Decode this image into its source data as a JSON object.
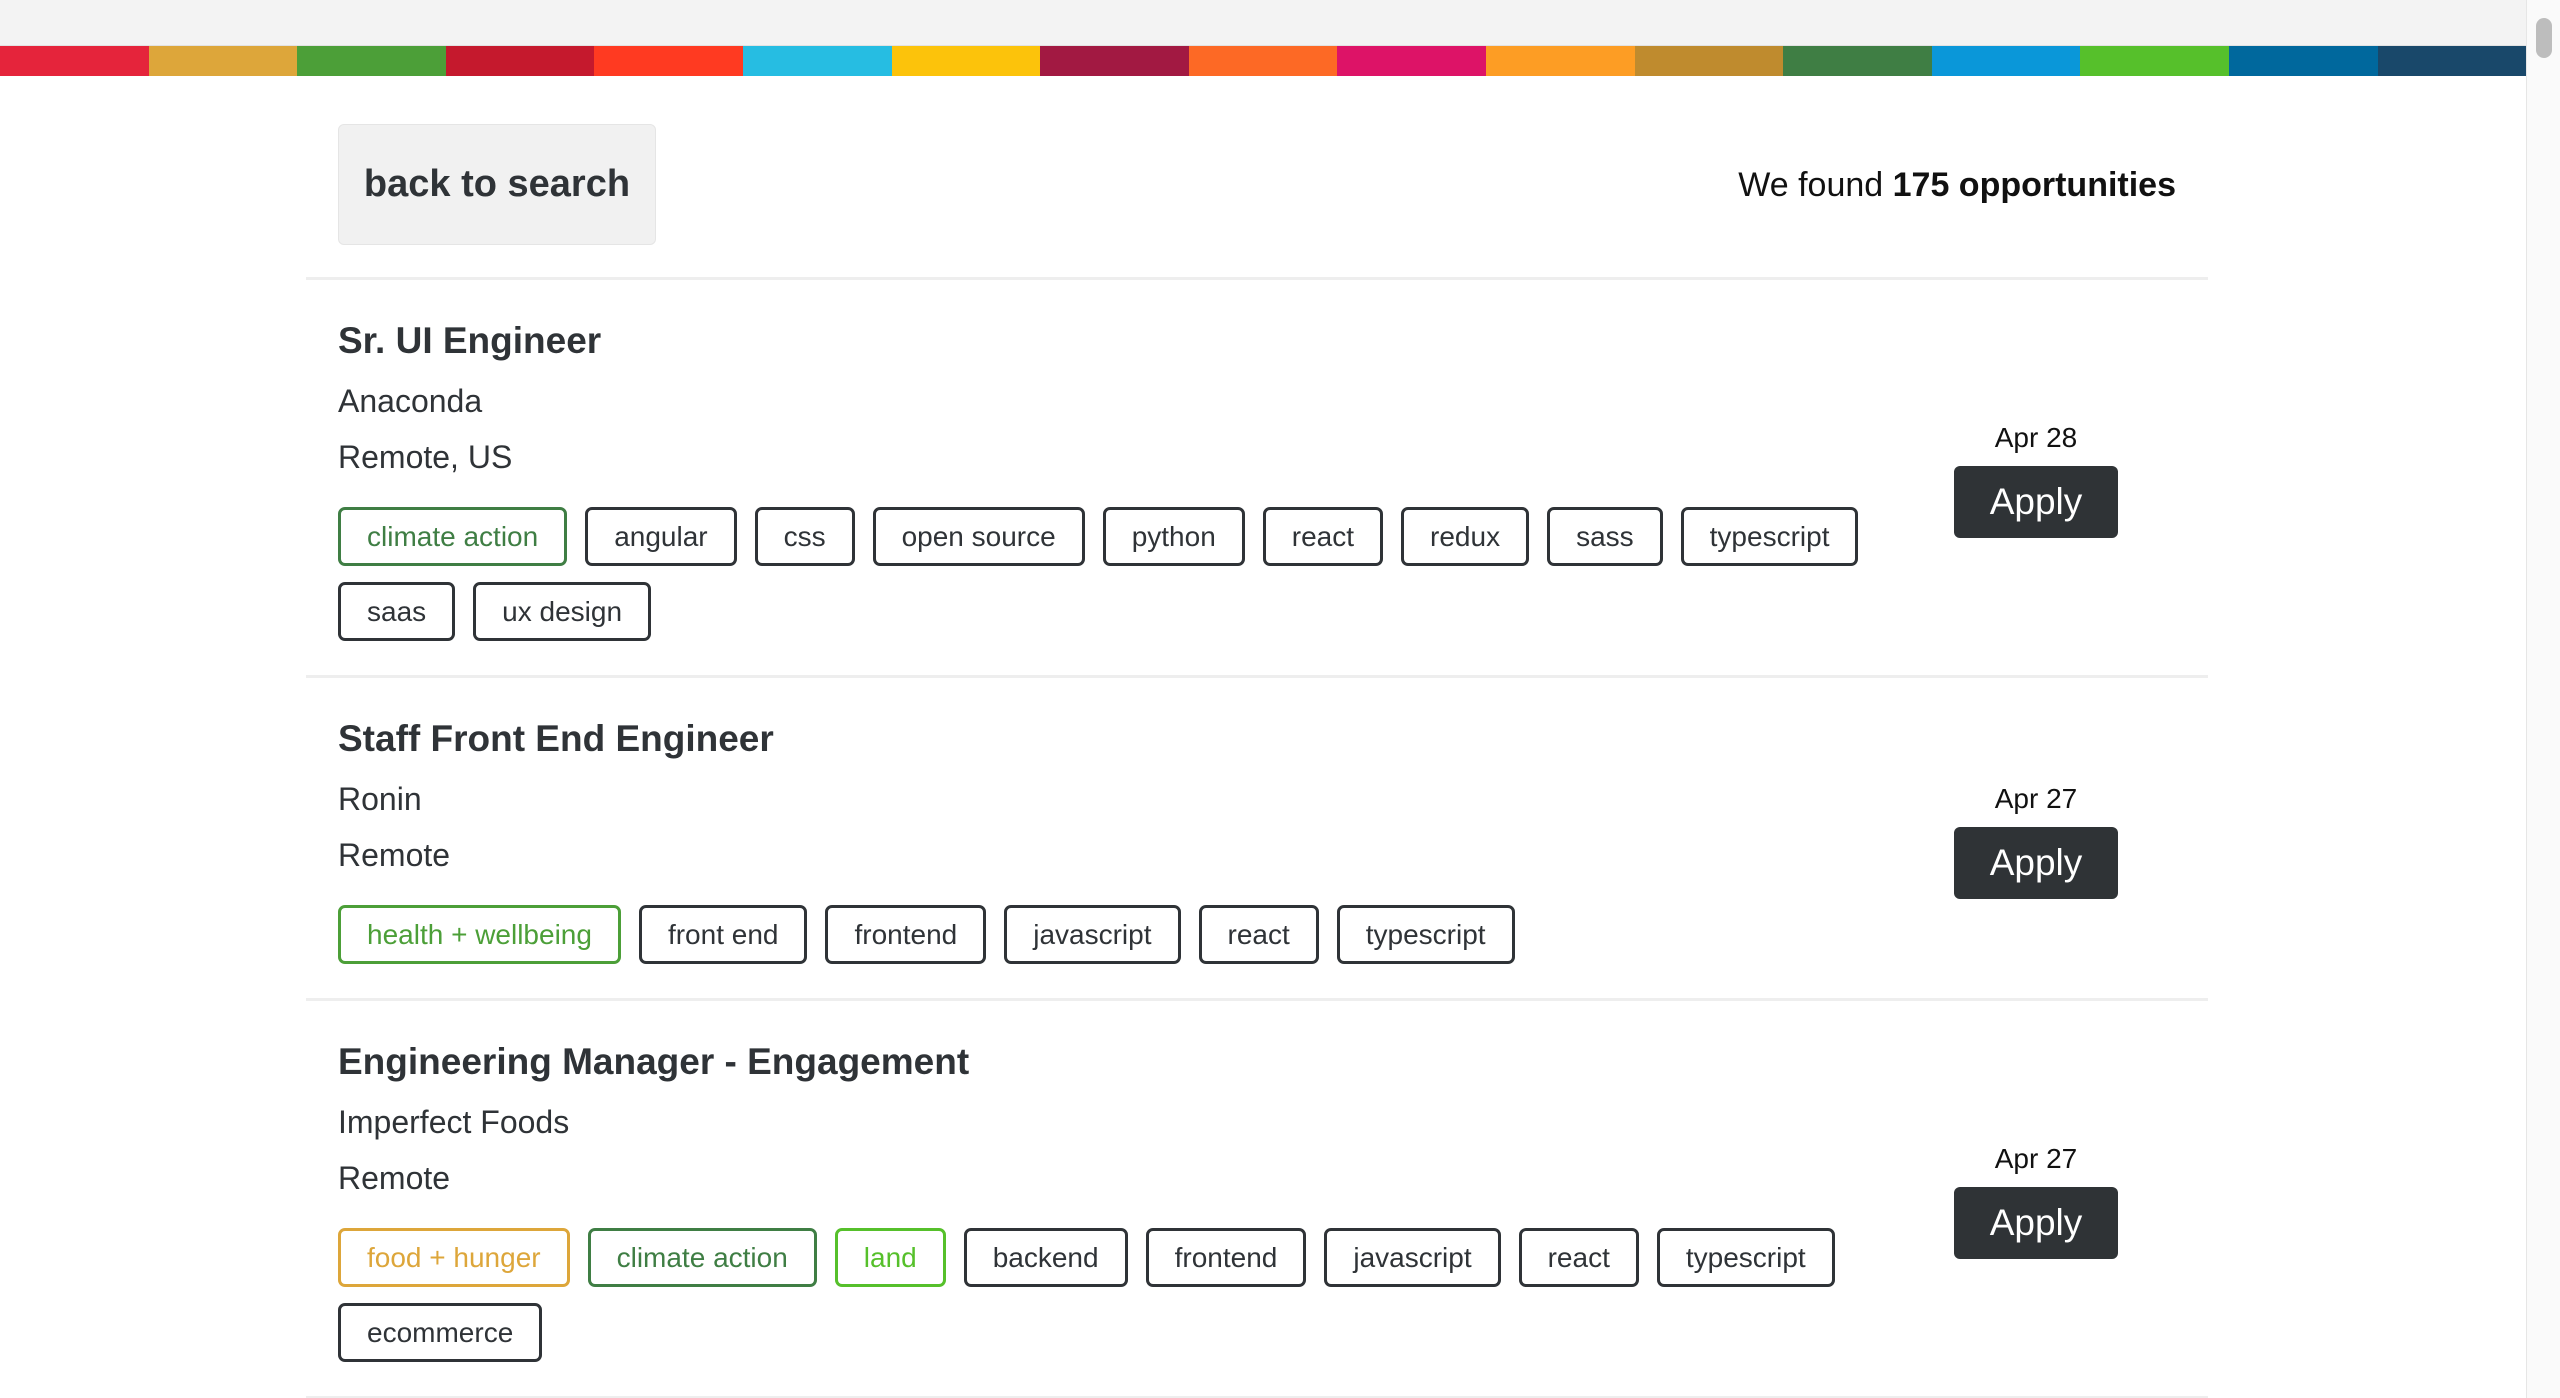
{
  "color_strip": [
    "#e5243b",
    "#dda63a",
    "#4c9f38",
    "#c5192d",
    "#ff3a21",
    "#26bde2",
    "#fcc30b",
    "#a21942",
    "#fd6925",
    "#dd1367",
    "#fd9d24",
    "#bf8b2e",
    "#3f7e44",
    "#0a97d9",
    "#56c02b",
    "#00689d",
    "#19486a"
  ],
  "header": {
    "back_label": "back to search",
    "found_prefix": "We found",
    "found_count": "175 opportunities"
  },
  "jobs": [
    {
      "title": "Sr. UI Engineer",
      "company": "Anaconda",
      "location": "Remote, US",
      "date": "Apr 28",
      "apply_label": "Apply",
      "tags": [
        {
          "label": "climate action",
          "color": "#3f7e44"
        },
        {
          "label": "angular",
          "color": ""
        },
        {
          "label": "css",
          "color": ""
        },
        {
          "label": "open source",
          "color": ""
        },
        {
          "label": "python",
          "color": ""
        },
        {
          "label": "react",
          "color": ""
        },
        {
          "label": "redux",
          "color": ""
        },
        {
          "label": "sass",
          "color": ""
        },
        {
          "label": "typescript",
          "color": ""
        },
        {
          "label": "saas",
          "color": ""
        },
        {
          "label": "ux design",
          "color": ""
        }
      ]
    },
    {
      "title": "Staff Front End Engineer",
      "company": "Ronin",
      "location": "Remote",
      "date": "Apr 27",
      "apply_label": "Apply",
      "tags": [
        {
          "label": "health + wellbeing",
          "color": "#4c9f38"
        },
        {
          "label": "front end",
          "color": ""
        },
        {
          "label": "frontend",
          "color": ""
        },
        {
          "label": "javascript",
          "color": ""
        },
        {
          "label": "react",
          "color": ""
        },
        {
          "label": "typescript",
          "color": ""
        }
      ]
    },
    {
      "title": "Engineering Manager - Engagement",
      "company": "Imperfect Foods",
      "location": "Remote",
      "date": "Apr 27",
      "apply_label": "Apply",
      "tags": [
        {
          "label": "food + hunger",
          "color": "#dda63a"
        },
        {
          "label": "climate action",
          "color": "#3f7e44"
        },
        {
          "label": "land",
          "color": "#56c02b"
        },
        {
          "label": "backend",
          "color": ""
        },
        {
          "label": "frontend",
          "color": ""
        },
        {
          "label": "javascript",
          "color": ""
        },
        {
          "label": "react",
          "color": ""
        },
        {
          "label": "typescript",
          "color": ""
        },
        {
          "label": "ecommerce",
          "color": ""
        }
      ]
    }
  ]
}
